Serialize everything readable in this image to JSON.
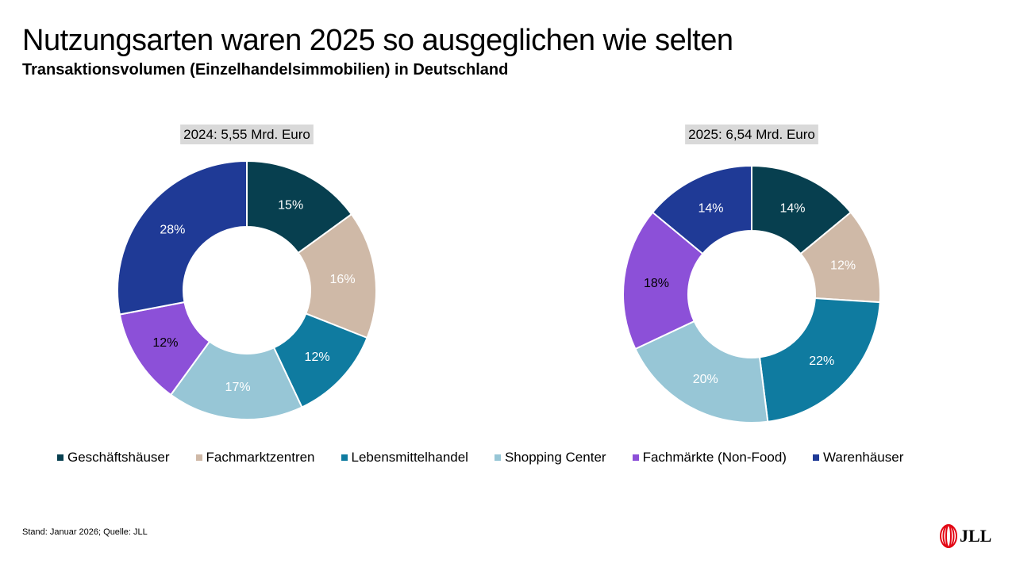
{
  "title": "Nutzungsarten waren 2025 so ausgeglichen wie selten",
  "subtitle": "Transaktionsvolumen (Einzelhandelsimmobilien) in Deutschland",
  "chart_data": [
    {
      "type": "pie",
      "variant": "donut",
      "title": "2024: 5,55 Mrd. Euro",
      "categories": [
        "Geschäftshäuser",
        "Fachmarktzentren",
        "Lebensmittelhandel",
        "Shopping Center",
        "Fachmärkte (Non-Food)",
        "Warenhäuser"
      ],
      "values": [
        15,
        16,
        12,
        17,
        12,
        28
      ],
      "labels": [
        "15%",
        "16%",
        "12%",
        "17%",
        "12%",
        "28%"
      ]
    },
    {
      "type": "pie",
      "variant": "donut",
      "title": "2025: 6,54 Mrd. Euro",
      "categories": [
        "Geschäftshäuser",
        "Fachmarktzentren",
        "Lebensmittelhandel",
        "Shopping Center",
        "Fachmärkte (Non-Food)",
        "Warenhäuser"
      ],
      "values": [
        14,
        12,
        22,
        20,
        18,
        14
      ],
      "labels": [
        "14%",
        "12%",
        "22%",
        "20%",
        "18%",
        "14%"
      ]
    }
  ],
  "legend": {
    "placement": "bottom",
    "items": [
      {
        "label": "Geschäftshäuser",
        "color": "#073f4f"
      },
      {
        "label": "Fachmarktzentren",
        "color": "#cfb9a7"
      },
      {
        "label": "Lebensmittelhandel",
        "color": "#0f7ba0"
      },
      {
        "label": "Shopping Center",
        "color": "#97c6d6"
      },
      {
        "label": "Fachmärkte (Non-Food)",
        "color": "#8c50d8"
      },
      {
        "label": "Warenhäuser",
        "color": "#1f3a96"
      }
    ]
  },
  "footer": "Stand: Januar 2026; Quelle: JLL",
  "logo": "JLL"
}
